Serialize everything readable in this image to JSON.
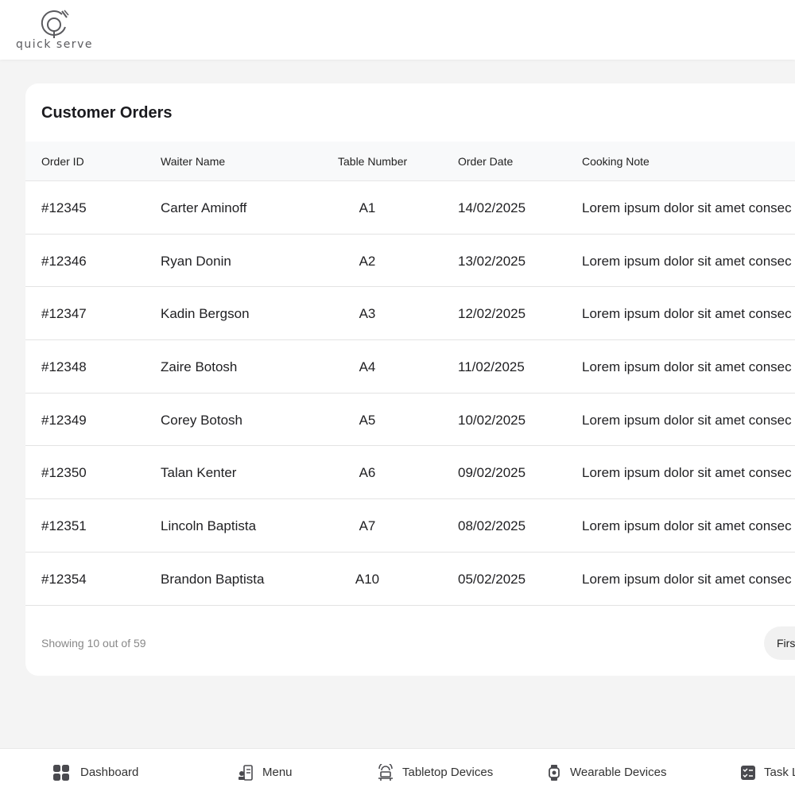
{
  "app": {
    "logo_text": "quick serve",
    "logo_icon": "plate-fork-spoon-icon"
  },
  "orders": {
    "title": "Customer Orders",
    "columns": [
      "Order ID",
      "Waiter Name",
      "Table Number",
      "Order Date",
      "Cooking Note"
    ],
    "rows": [
      {
        "id": "#12345",
        "waiter": "Carter Aminoff",
        "table": "A1",
        "date": "14/02/2025",
        "note": "Lorem ipsum dolor sit amet consec"
      },
      {
        "id": "#12346",
        "waiter": "Ryan Donin",
        "table": "A2",
        "date": "13/02/2025",
        "note": "Lorem ipsum dolor sit amet consec"
      },
      {
        "id": "#12347",
        "waiter": "Kadin Bergson",
        "table": "A3",
        "date": "12/02/2025",
        "note": "Lorem ipsum dolor sit amet consec"
      },
      {
        "id": "#12348",
        "waiter": "Zaire Botosh",
        "table": "A4",
        "date": "11/02/2025",
        "note": "Lorem ipsum dolor sit amet consec"
      },
      {
        "id": "#12349",
        "waiter": "Corey Botosh",
        "table": "A5",
        "date": "10/02/2025",
        "note": "Lorem ipsum dolor sit amet consec"
      },
      {
        "id": "#12350",
        "waiter": "Talan Kenter",
        "table": "A6",
        "date": "09/02/2025",
        "note": "Lorem ipsum dolor sit amet consec"
      },
      {
        "id": "#12351",
        "waiter": "Lincoln Baptista",
        "table": "A7",
        "date": "08/02/2025",
        "note": "Lorem ipsum dolor sit amet consec"
      },
      {
        "id": "#12354",
        "waiter": "Brandon Baptista",
        "table": "A10",
        "date": "05/02/2025",
        "note": "Lorem ipsum dolor sit amet consec"
      }
    ],
    "showing_text": "Showing 10 out of 59",
    "pagination_first": "First"
  },
  "nav": {
    "items": [
      {
        "label": "Dashboard",
        "icon": "grid-icon"
      },
      {
        "label": "Menu",
        "icon": "chef-menu-icon"
      },
      {
        "label": "Tabletop Devices",
        "icon": "tabletop-device-icon"
      },
      {
        "label": "Wearable Devices",
        "icon": "watch-icon"
      },
      {
        "label": "Task L",
        "icon": "task-list-icon"
      }
    ]
  },
  "colors": {
    "background": "#f4f4f4",
    "card": "#ffffff",
    "icon": "#4a4a4f"
  }
}
